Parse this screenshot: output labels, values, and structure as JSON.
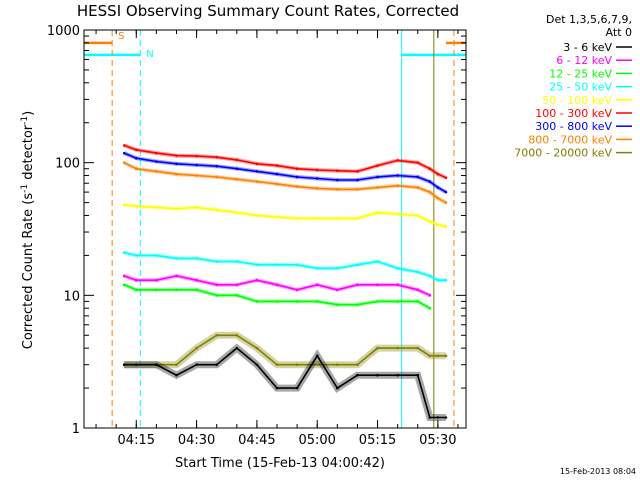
{
  "chart_data": {
    "type": "line",
    "title": "HESSI Observing Summary Count Rates, Corrected",
    "xlabel": "Start Time (15-Feb-13 04:00:42)",
    "ylabel_main": "Corrected Count Rate (s",
    "ylabel_sup1": "-1",
    "ylabel_mid": " detector",
    "ylabel_sup2": "-1",
    "ylabel_end": ")",
    "yscale": "log",
    "xlim": [
      "04:02",
      "05:37"
    ],
    "ylim": [
      1,
      1000
    ],
    "x_ticks": [
      "04:15",
      "04:30",
      "04:45",
      "05:00",
      "05:15",
      "05:30"
    ],
    "y_ticks": [
      "1",
      "10",
      "100",
      "1000"
    ],
    "legend_header": [
      "Det 1,3,5,6,7,9,",
      "Att 0"
    ],
    "legend_position": "top-right outside plot",
    "footer_date": "15-Feb-2013 08:04",
    "indicators": [
      {
        "label": "S",
        "color": "#ff8000",
        "time": "04:09",
        "level": 800,
        "bars": [
          [
            "04:02",
            "04:09"
          ],
          [
            "05:32",
            "05:37"
          ]
        ]
      },
      {
        "label": "N",
        "color": "#00ffff",
        "time": "04:16",
        "level": 650,
        "bars": [
          [
            "04:02",
            "04:16"
          ],
          [
            "05:21",
            "05:37"
          ]
        ]
      }
    ],
    "vertical_markers": [
      {
        "time": "04:09",
        "color": "#ff8000",
        "style": "dashed"
      },
      {
        "time": "04:16",
        "color": "#00ffff",
        "style": "dashed"
      },
      {
        "time": "05:21",
        "color": "#00ffff",
        "style": "solid"
      },
      {
        "time": "05:29",
        "color": "#808000",
        "style": "solid"
      },
      {
        "time": "05:34",
        "color": "#ff8000",
        "style": "dashed"
      }
    ],
    "x": [
      "04:12",
      "04:15",
      "04:20",
      "04:25",
      "04:30",
      "04:35",
      "04:40",
      "04:45",
      "04:50",
      "04:55",
      "05:00",
      "05:05",
      "05:10",
      "05:15",
      "05:20",
      "05:25",
      "05:28",
      "05:30",
      "05:32"
    ],
    "series": [
      {
        "name": "3 - 6 keV",
        "color": "#000000",
        "values": [
          3,
          3,
          3,
          2.5,
          3,
          3,
          4,
          3,
          2,
          2,
          3.5,
          2,
          2.5,
          2.5,
          2.5,
          2.5,
          1.2,
          1.2,
          1.2
        ]
      },
      {
        "name": "6 - 12 keV",
        "color": "#ff00ff",
        "values": [
          14,
          13,
          13,
          14,
          13,
          12,
          12,
          13,
          12,
          11,
          12,
          11,
          12,
          12,
          12,
          11,
          10,
          null,
          null
        ]
      },
      {
        "name": "12 - 25 keV",
        "color": "#00ff00",
        "values": [
          12,
          11,
          11,
          11,
          11,
          10,
          10,
          9,
          9,
          9,
          9,
          8.5,
          8.5,
          9,
          9,
          9,
          8,
          null,
          null
        ]
      },
      {
        "name": "25 - 50 keV",
        "color": "#00ffff",
        "values": [
          21,
          20,
          20,
          19,
          19,
          18,
          18,
          17,
          17,
          17,
          16,
          16,
          17,
          18,
          16,
          15,
          14,
          13,
          13
        ]
      },
      {
        "name": "50 - 100 keV",
        "color": "#ffff00",
        "values": [
          48,
          47,
          46,
          45,
          46,
          44,
          42,
          40,
          39,
          38,
          38,
          38,
          38,
          42,
          41,
          40,
          36,
          34,
          33
        ]
      },
      {
        "name": "100 - 300 keV",
        "color": "#ff0000",
        "values": [
          135,
          125,
          118,
          113,
          112,
          110,
          105,
          98,
          95,
          90,
          88,
          87,
          86,
          95,
          104,
          100,
          90,
          82,
          77
        ]
      },
      {
        "name": "300 - 800 keV",
        "color": "#0000ff",
        "values": [
          118,
          108,
          102,
          98,
          96,
          94,
          90,
          86,
          82,
          78,
          76,
          74,
          74,
          78,
          80,
          78,
          72,
          65,
          60
        ]
      },
      {
        "name": "800 - 7000 keV",
        "color": "#ff8000",
        "values": [
          100,
          90,
          86,
          82,
          80,
          78,
          75,
          72,
          69,
          66,
          64,
          63,
          63,
          65,
          67,
          65,
          60,
          54,
          50
        ]
      },
      {
        "name": "7000 - 20000 keV",
        "color": "#808000",
        "values": [
          3,
          3,
          3,
          3,
          4,
          5,
          5,
          4,
          3,
          3,
          3,
          3,
          3,
          4,
          4,
          4,
          3.5,
          3.5,
          3.5
        ]
      }
    ]
  }
}
